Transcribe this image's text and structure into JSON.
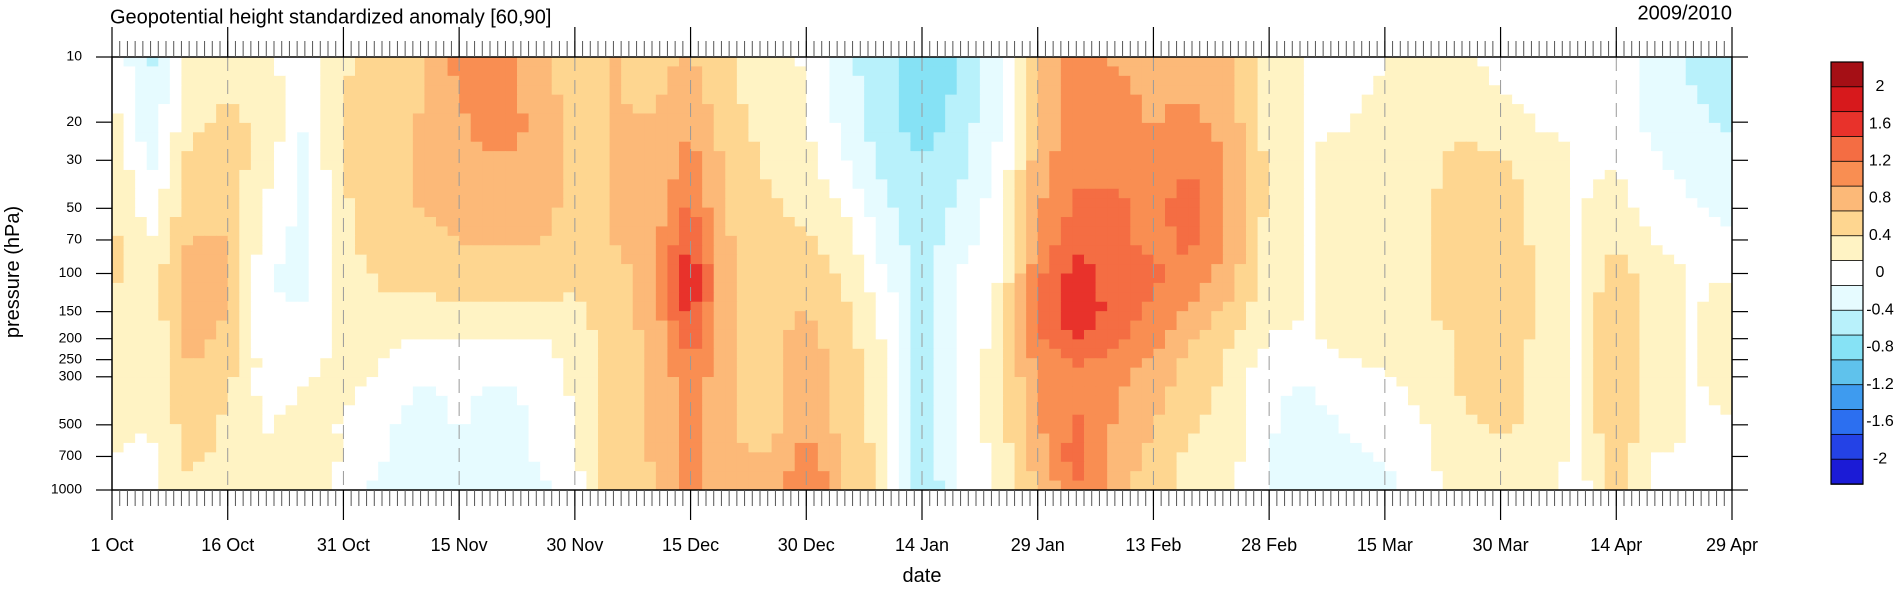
{
  "chart_data": {
    "type": "heatmap",
    "title": "Geopotential height standardized anomaly [60,90]",
    "season_label": "2009/2010",
    "xlabel": "date",
    "ylabel": "pressure (hPa)",
    "x_day_range": [
      0,
      210
    ],
    "x_ticks": [
      {
        "day": 0,
        "label": "1 Oct"
      },
      {
        "day": 15,
        "label": "16 Oct"
      },
      {
        "day": 30,
        "label": "31 Oct"
      },
      {
        "day": 45,
        "label": "15 Nov"
      },
      {
        "day": 60,
        "label": "30 Nov"
      },
      {
        "day": 75,
        "label": "15 Dec"
      },
      {
        "day": 90,
        "label": "30 Dec"
      },
      {
        "day": 105,
        "label": "14 Jan"
      },
      {
        "day": 120,
        "label": "29 Jan"
      },
      {
        "day": 135,
        "label": "13 Feb"
      },
      {
        "day": 150,
        "label": "28 Feb"
      },
      {
        "day": 165,
        "label": "15 Mar"
      },
      {
        "day": 180,
        "label": "30 Mar"
      },
      {
        "day": 195,
        "label": "14 Apr"
      },
      {
        "day": 210,
        "label": "29 Apr"
      }
    ],
    "y_scale": "log",
    "ylim": [
      10,
      1000
    ],
    "y_ticks": [
      "10",
      "20",
      "30",
      "50",
      "70",
      "100",
      "150",
      "200",
      "250",
      "300",
      "500",
      "700",
      "1000"
    ],
    "colorbar": {
      "labels": [
        "2",
        "1.6",
        "1.2",
        "0.8",
        "0.4",
        "0",
        "-0.4",
        "-0.8",
        "-1.2",
        "-1.6",
        "-2"
      ],
      "colors": [
        "#a50f15",
        "#d7191c",
        "#e8322b",
        "#f46d43",
        "#f98e52",
        "#fcb978",
        "#fed690",
        "#fff3c4",
        "#ffffff",
        "#e6fbff",
        "#b8f1fb",
        "#86e2f5",
        "#5fc2ec",
        "#3e9bef",
        "#2c6ff0",
        "#2442e6",
        "#1b1bd6"
      ]
    },
    "pressure_levels": [
      10,
      20,
      30,
      50,
      70,
      100,
      150,
      200,
      250,
      300,
      500,
      700,
      1000
    ],
    "days": [
      0,
      5,
      10,
      15,
      20,
      25,
      30,
      35,
      40,
      45,
      50,
      55,
      60,
      65,
      70,
      75,
      80,
      85,
      90,
      95,
      100,
      105,
      110,
      115,
      120,
      125,
      130,
      135,
      140,
      145,
      150,
      155,
      160,
      165,
      170,
      175,
      180,
      185,
      190,
      195,
      200,
      205,
      210
    ],
    "z": [
      [
        0.1,
        -0.4,
        0.2,
        0.3,
        0.2,
        -0.1,
        0.3,
        0.5,
        0.5,
        0.9,
        0.9,
        0.7,
        0.4,
        0.6,
        0.5,
        0.6,
        0.4,
        0.2,
        0.1,
        -0.3,
        -0.5,
        -0.8,
        -0.6,
        -0.1,
        0.6,
        1.0,
        0.8,
        0.8,
        0.7,
        0.6,
        0.2,
        0.1,
        0.0,
        0.1,
        0.2,
        0.2,
        0.0,
        0.1,
        0.1,
        0.0,
        -0.2,
        -0.4,
        -0.5
      ],
      [
        0.2,
        -0.3,
        0.3,
        0.4,
        0.3,
        -0.1,
        0.4,
        0.5,
        0.6,
        0.8,
        0.9,
        0.8,
        0.5,
        0.6,
        0.6,
        0.8,
        0.4,
        0.3,
        0.1,
        -0.2,
        -0.5,
        -0.7,
        -0.5,
        -0.1,
        0.6,
        1.0,
        0.9,
        0.8,
        0.9,
        0.7,
        0.2,
        0.1,
        0.1,
        0.2,
        0.3,
        0.3,
        0.2,
        0.1,
        0.1,
        0.0,
        -0.2,
        -0.3,
        -0.4
      ],
      [
        0.3,
        -0.2,
        0.4,
        0.5,
        0.2,
        -0.2,
        0.4,
        0.5,
        0.6,
        0.8,
        0.8,
        0.8,
        0.5,
        0.6,
        0.6,
        0.9,
        0.5,
        0.3,
        0.2,
        -0.1,
        -0.4,
        -0.6,
        -0.4,
        -0.1,
        0.7,
        1.0,
        1.0,
        0.9,
        1.0,
        0.8,
        0.3,
        0.1,
        0.2,
        0.2,
        0.3,
        0.4,
        0.4,
        0.2,
        0.1,
        0.1,
        -0.1,
        -0.2,
        -0.3
      ],
      [
        0.4,
        0.0,
        0.5,
        0.5,
        0.1,
        -0.2,
        0.3,
        0.5,
        0.6,
        0.7,
        0.7,
        0.7,
        0.5,
        0.6,
        0.7,
        1.1,
        0.5,
        0.4,
        0.3,
        0.1,
        -0.3,
        -0.5,
        -0.3,
        0.0,
        0.8,
        1.1,
        1.1,
        1.0,
        1.2,
        0.8,
        0.3,
        0.1,
        0.2,
        0.3,
        0.3,
        0.5,
        0.5,
        0.3,
        0.1,
        0.2,
        0.0,
        -0.1,
        -0.2
      ],
      [
        0.4,
        0.1,
        0.6,
        0.6,
        0.0,
        -0.2,
        0.3,
        0.5,
        0.5,
        0.6,
        0.6,
        0.6,
        0.5,
        0.6,
        0.7,
        1.3,
        0.6,
        0.4,
        0.4,
        0.2,
        -0.2,
        -0.5,
        -0.2,
        0.0,
        0.9,
        1.2,
        1.1,
        1.0,
        1.1,
        0.8,
        0.2,
        0.1,
        0.2,
        0.3,
        0.3,
        0.5,
        0.5,
        0.3,
        0.1,
        0.3,
        0.1,
        0.0,
        -0.1
      ],
      [
        0.4,
        0.2,
        0.7,
        0.6,
        -0.1,
        -0.2,
        0.2,
        0.4,
        0.4,
        0.5,
        0.5,
        0.5,
        0.4,
        0.5,
        0.7,
        1.5,
        0.6,
        0.5,
        0.5,
        0.3,
        -0.1,
        -0.5,
        -0.1,
        0.1,
        1.0,
        1.4,
        1.2,
        1.1,
        1.0,
        0.7,
        0.2,
        0.1,
        0.2,
        0.3,
        0.3,
        0.5,
        0.6,
        0.3,
        0.1,
        0.5,
        0.2,
        0.1,
        0.1
      ],
      [
        0.3,
        0.2,
        0.7,
        0.6,
        -0.1,
        -0.1,
        0.2,
        0.3,
        0.3,
        0.3,
        0.3,
        0.3,
        0.3,
        0.5,
        0.7,
        1.4,
        0.6,
        0.5,
        0.6,
        0.4,
        0.1,
        -0.5,
        -0.1,
        0.2,
        1.1,
        1.5,
        1.2,
        1.0,
        0.8,
        0.5,
        0.2,
        0.1,
        0.2,
        0.3,
        0.3,
        0.5,
        0.6,
        0.3,
        0.1,
        0.6,
        0.2,
        0.1,
        0.2
      ],
      [
        0.3,
        0.1,
        0.7,
        0.5,
        -0.1,
        0.0,
        0.2,
        0.2,
        0.1,
        0.1,
        0.1,
        0.1,
        0.2,
        0.5,
        0.6,
        1.2,
        0.6,
        0.5,
        0.7,
        0.4,
        0.1,
        -0.5,
        -0.1,
        0.2,
        1.0,
        1.3,
        1.1,
        0.9,
        0.6,
        0.4,
        0.1,
        0.1,
        0.2,
        0.2,
        0.2,
        0.4,
        0.5,
        0.3,
        0.1,
        0.6,
        0.2,
        0.1,
        0.2
      ],
      [
        0.3,
        0.1,
        0.6,
        0.5,
        0.0,
        0.0,
        0.2,
        0.1,
        0.0,
        0.0,
        0.0,
        0.0,
        0.2,
        0.5,
        0.6,
        1.1,
        0.6,
        0.5,
        0.7,
        0.5,
        0.2,
        -0.5,
        -0.1,
        0.3,
        0.9,
        1.1,
        1.0,
        0.8,
        0.5,
        0.3,
        0.0,
        -0.1,
        0.1,
        0.2,
        0.2,
        0.4,
        0.5,
        0.3,
        0.1,
        0.6,
        0.2,
        0.1,
        0.2
      ],
      [
        0.3,
        0.1,
        0.6,
        0.4,
        0.0,
        0.1,
        0.2,
        0.1,
        -0.1,
        -0.1,
        -0.1,
        -0.1,
        0.2,
        0.5,
        0.6,
        1.0,
        0.6,
        0.5,
        0.7,
        0.5,
        0.2,
        -0.5,
        -0.1,
        0.3,
        0.8,
        1.0,
        0.9,
        0.7,
        0.5,
        0.3,
        -0.1,
        -0.1,
        0.0,
        0.1,
        0.2,
        0.4,
        0.5,
        0.3,
        0.1,
        0.6,
        0.2,
        0.1,
        0.2
      ],
      [
        0.2,
        0.1,
        0.5,
        0.3,
        0.1,
        0.2,
        0.1,
        -0.1,
        -0.2,
        -0.1,
        -0.2,
        -0.1,
        0.1,
        0.5,
        0.6,
        0.9,
        0.6,
        0.5,
        0.8,
        0.5,
        0.2,
        -0.5,
        -0.1,
        0.3,
        0.8,
        1.1,
        0.8,
        0.6,
        0.4,
        0.2,
        -0.1,
        -0.2,
        -0.1,
        0.0,
        0.1,
        0.3,
        0.4,
        0.3,
        0.1,
        0.6,
        0.2,
        0.1,
        0.1
      ],
      [
        0.1,
        0.1,
        0.4,
        0.3,
        0.2,
        0.3,
        0.1,
        -0.1,
        -0.2,
        -0.2,
        -0.2,
        -0.1,
        0.1,
        0.5,
        0.6,
        1.0,
        0.6,
        0.6,
        0.9,
        0.6,
        0.3,
        -0.5,
        -0.1,
        0.2,
        0.7,
        1.2,
        0.8,
        0.5,
        0.3,
        0.2,
        -0.1,
        -0.3,
        -0.2,
        -0.1,
        0.1,
        0.3,
        0.3,
        0.2,
        0.1,
        0.5,
        0.1,
        0.1,
        0.0
      ],
      [
        0.0,
        0.0,
        0.3,
        0.3,
        0.2,
        0.3,
        0.0,
        -0.2,
        -0.3,
        -0.3,
        -0.3,
        -0.2,
        0.0,
        0.5,
        0.5,
        0.9,
        0.6,
        0.6,
        1.1,
        0.6,
        0.3,
        -0.6,
        -0.1,
        0.2,
        0.6,
        1.0,
        0.7,
        0.4,
        0.3,
        0.1,
        -0.1,
        -0.3,
        -0.3,
        -0.2,
        0.0,
        0.2,
        0.2,
        0.2,
        0.0,
        0.4,
        0.1,
        0.1,
        -0.1
      ]
    ]
  }
}
